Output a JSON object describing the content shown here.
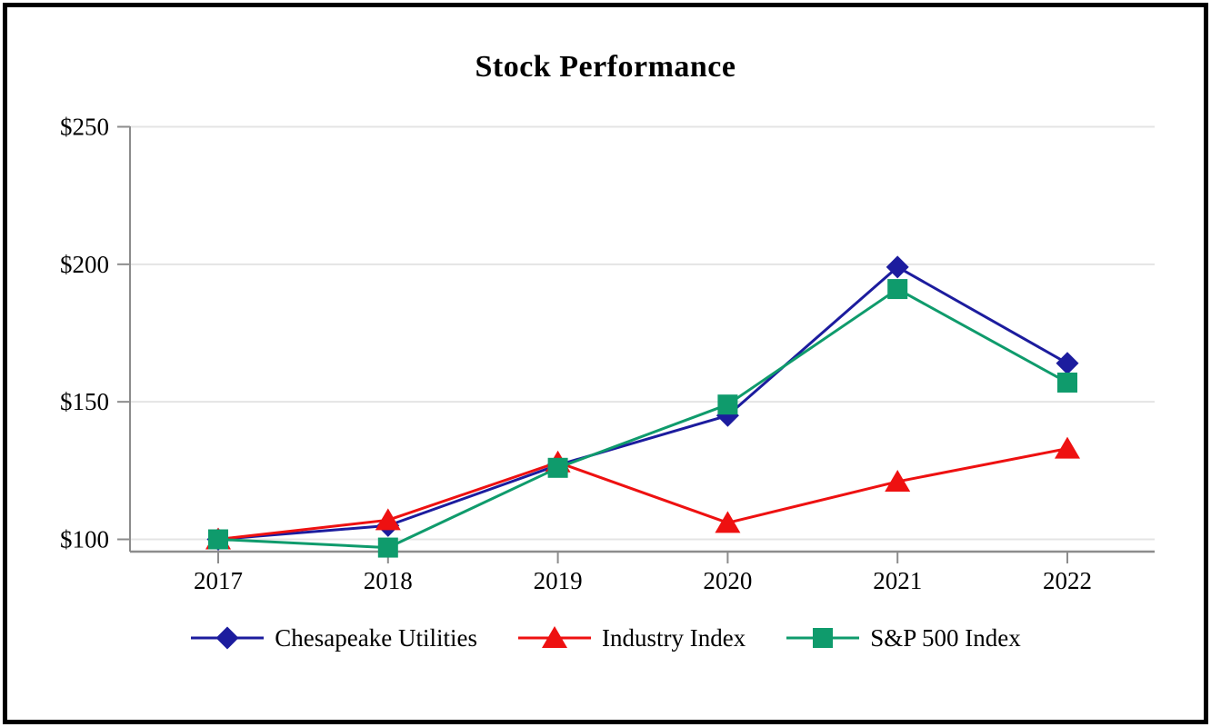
{
  "chart_data": {
    "type": "line",
    "title": "Stock Performance",
    "categories": [
      "2017",
      "2018",
      "2019",
      "2020",
      "2021",
      "2022"
    ],
    "series": [
      {
        "name": "Chesapeake Utilities",
        "color": "#1c1c9e",
        "marker": "diamond",
        "values": [
          100,
          105,
          127,
          145,
          199,
          164
        ]
      },
      {
        "name": "Industry Index",
        "color": "#ee1111",
        "marker": "triangle",
        "values": [
          100,
          107,
          128,
          106,
          121,
          133
        ]
      },
      {
        "name": "S&P 500 Index",
        "color": "#0f9b6c",
        "marker": "square",
        "values": [
          100,
          97,
          126,
          149,
          191,
          157
        ]
      }
    ],
    "y_ticks": [
      {
        "value": 250,
        "label": "$250"
      },
      {
        "value": 200,
        "label": "$200"
      },
      {
        "value": 150,
        "label": "$150"
      },
      {
        "value": 100,
        "label": "$100"
      }
    ],
    "ylim": [
      95,
      250
    ],
    "xlabel": "",
    "ylabel": "",
    "grid": true,
    "legend_position": "bottom",
    "colors": {
      "axis": "#8c8c8c",
      "gridline": "#e4e4e4",
      "text": "#000000",
      "frame_border": "#000000",
      "background": "#ffffff"
    }
  }
}
